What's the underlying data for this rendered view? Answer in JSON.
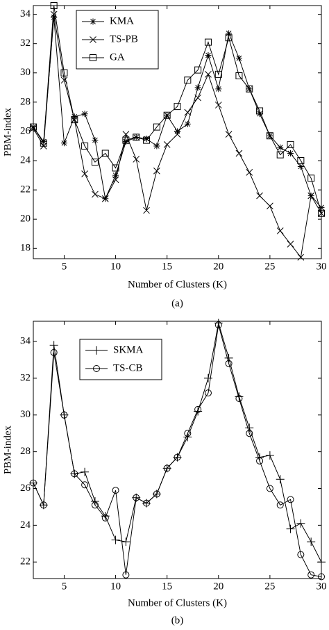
{
  "chart_data": [
    {
      "type": "line",
      "xlabel": "Number of Clusters (K)",
      "ylabel": "PBM-index",
      "caption": "(a)",
      "x": [
        2,
        3,
        4,
        5,
        6,
        7,
        8,
        9,
        10,
        11,
        12,
        13,
        14,
        15,
        16,
        17,
        18,
        19,
        20,
        21,
        22,
        23,
        24,
        25,
        26,
        27,
        28,
        29,
        30
      ],
      "xlim": [
        2,
        30
      ],
      "xticks": [
        5,
        10,
        15,
        20,
        25,
        30
      ],
      "ylim": [
        17.3,
        34.6
      ],
      "yticks": [
        18,
        20,
        22,
        24,
        26,
        28,
        30,
        32,
        34
      ],
      "legend": "upper-left",
      "series": [
        {
          "name": "KMA",
          "color": "#000000",
          "marker": "star",
          "values": [
            26.3,
            25.3,
            33.8,
            25.2,
            27.0,
            27.2,
            25.4,
            21.4,
            23.0,
            25.3,
            25.6,
            25.5,
            25.0,
            27.1,
            26.0,
            26.5,
            29.0,
            31.2,
            28.9,
            32.7,
            31.0,
            28.9,
            27.2,
            25.7,
            24.9,
            24.5,
            23.6,
            21.6,
            20.8
          ]
        },
        {
          "name": "TS-PB",
          "color": "#000000",
          "marker": "x",
          "values": [
            26.2,
            25.0,
            34.0,
            29.5,
            26.8,
            23.1,
            21.7,
            21.4,
            22.7,
            25.8,
            24.1,
            20.6,
            23.3,
            25.1,
            25.8,
            27.3,
            28.3,
            29.9,
            27.8,
            25.8,
            24.5,
            23.2,
            21.6,
            20.9,
            19.2,
            18.3,
            17.4,
            21.6,
            20.4
          ]
        },
        {
          "name": "GA",
          "color": "#000000",
          "marker": "square",
          "values": [
            26.3,
            25.2,
            34.6,
            30.0,
            26.8,
            25.0,
            23.9,
            24.5,
            23.5,
            25.4,
            25.6,
            25.4,
            26.3,
            27.1,
            27.7,
            29.5,
            30.2,
            32.1,
            29.9,
            32.4,
            29.8,
            28.9,
            27.4,
            25.7,
            24.4,
            25.1,
            24.0,
            22.8,
            20.4
          ]
        }
      ]
    },
    {
      "type": "line",
      "xlabel": "Number of Clusters (K)",
      "ylabel": "PBM-index",
      "caption": "(b)",
      "x": [
        2,
        3,
        4,
        5,
        6,
        7,
        8,
        9,
        10,
        11,
        12,
        13,
        14,
        15,
        16,
        17,
        18,
        19,
        20,
        21,
        22,
        23,
        24,
        25,
        26,
        27,
        28,
        29,
        30
      ],
      "xlim": [
        2,
        30
      ],
      "xticks": [
        5,
        10,
        15,
        20,
        25,
        30
      ],
      "ylim": [
        21.1,
        35.1
      ],
      "yticks": [
        22,
        24,
        26,
        28,
        30,
        32,
        34
      ],
      "legend": "upper-left",
      "series": [
        {
          "name": "SKMA",
          "color": "#000000",
          "marker": "plus",
          "values": [
            26.3,
            25.1,
            33.8,
            30.0,
            26.8,
            26.9,
            25.3,
            24.5,
            23.2,
            23.1,
            25.5,
            25.2,
            25.7,
            27.1,
            27.7,
            28.8,
            30.2,
            32.0,
            35.0,
            33.1,
            31.0,
            29.3,
            27.7,
            27.8,
            26.5,
            23.8,
            24.1,
            23.1,
            22.0
          ]
        },
        {
          "name": "TS-CB",
          "color": "#000000",
          "marker": "circle",
          "values": [
            26.3,
            25.1,
            33.4,
            30.0,
            26.8,
            26.2,
            25.1,
            24.4,
            25.9,
            21.3,
            25.5,
            25.2,
            25.7,
            27.1,
            27.7,
            29.0,
            30.3,
            31.2,
            34.9,
            32.8,
            30.9,
            29.0,
            27.5,
            26.0,
            25.1,
            25.4,
            22.4,
            21.3,
            21.2
          ]
        }
      ]
    }
  ]
}
